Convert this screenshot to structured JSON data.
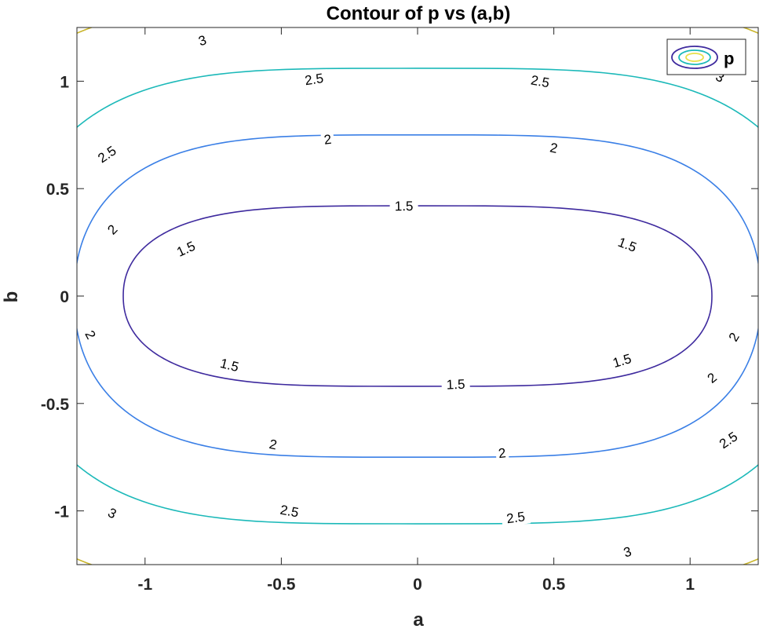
{
  "chart_data": {
    "type": "contour",
    "title": "Contour of p vs (a,b)",
    "xlabel": "a",
    "ylabel": "b",
    "xlim": [
      -1.25,
      1.25
    ],
    "ylim": [
      -1.25,
      1.25
    ],
    "xticks": [
      -1,
      -0.5,
      0,
      0.5,
      1
    ],
    "yticks": [
      -1,
      -0.5,
      0,
      0.5,
      1
    ],
    "xtick_labels": [
      "-1",
      "-0.5",
      "0",
      "0.5",
      "1"
    ],
    "ytick_labels": [
      "-1",
      "-0.5",
      "0",
      "0.5",
      "1"
    ],
    "grid": false,
    "legend": {
      "entries": [
        "p"
      ],
      "placement": "top-right"
    },
    "levels": [
      {
        "value": 1.5,
        "label": "1.5",
        "color": "#3e2a9e",
        "a_extent": 1.08,
        "b_extent": 0.42,
        "labels_at": [
          [
            -0.85,
            0.22
          ],
          [
            -0.05,
            0.42
          ],
          [
            0.77,
            0.24
          ],
          [
            -0.69,
            -0.32
          ],
          [
            0.14,
            -0.41
          ],
          [
            0.75,
            -0.3
          ]
        ]
      },
      {
        "value": 2,
        "label": "2",
        "color": "#3a7fe6",
        "a_extent": 1.26,
        "b_extent": 0.75,
        "labels_at": [
          [
            -1.12,
            0.31
          ],
          [
            -0.33,
            0.73
          ],
          [
            0.5,
            0.69
          ],
          [
            1.16,
            -0.19
          ],
          [
            -1.2,
            -0.18
          ],
          [
            -0.53,
            -0.69
          ],
          [
            0.31,
            -0.73
          ],
          [
            1.08,
            -0.38
          ]
        ]
      },
      {
        "value": 2.5,
        "label": "2.5",
        "color": "#1cb9b9",
        "a_extent": 1.5,
        "b_extent": 1.06,
        "labels_at": [
          [
            -1.14,
            0.66
          ],
          [
            -0.38,
            1.01
          ],
          [
            0.45,
            1.0
          ],
          [
            1.14,
            -0.67
          ],
          [
            -0.47,
            -1.0
          ],
          [
            0.36,
            -1.03
          ]
        ]
      },
      {
        "value": 3,
        "label": "3",
        "color": "#c9b52c",
        "a_extent": 1.8,
        "b_extent": 1.38,
        "labels_at": [
          [
            -0.79,
            1.19
          ],
          [
            -1.12,
            -1.01
          ],
          [
            1.11,
            1.02
          ],
          [
            0.77,
            -1.19
          ]
        ]
      }
    ]
  }
}
